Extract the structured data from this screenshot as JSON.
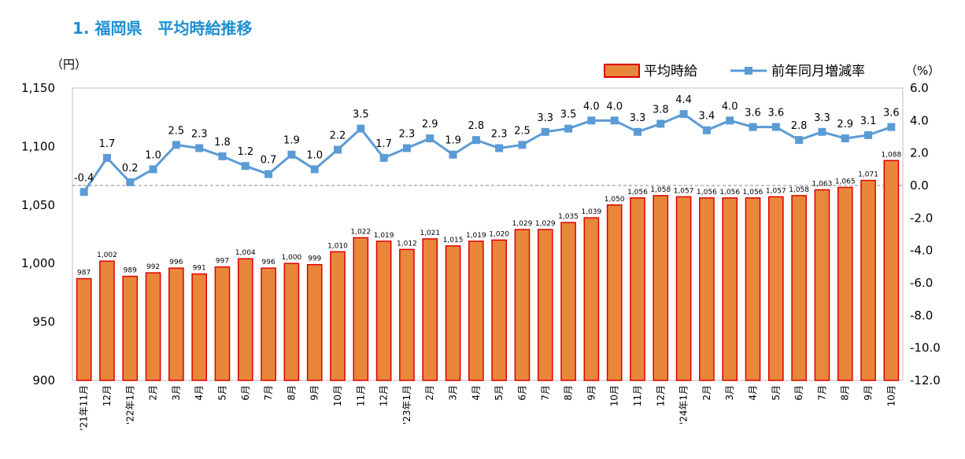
{
  "title": "1. 福岡県　平均時給推移",
  "chart_data": {
    "type": "bar",
    "title": "1. 福岡県　平均時給推移",
    "left_unit": "（円）",
    "right_unit": "（%）",
    "categories": [
      "'21年11月",
      "12月",
      "'22年1月",
      "2月",
      "3月",
      "4月",
      "5月",
      "6月",
      "7月",
      "8月",
      "9月",
      "10月",
      "11月",
      "12月",
      "'23年1月",
      "2月",
      "3月",
      "4月",
      "5月",
      "6月",
      "7月",
      "8月",
      "9月",
      "10月",
      "11月",
      "12月",
      "'24年1月",
      "2月",
      "3月",
      "4月",
      "5月",
      "6月",
      "7月",
      "8月",
      "9月",
      "10月"
    ],
    "y_left": {
      "min": 900,
      "max": 1150,
      "step": 50,
      "ticks": [
        "900",
        "950",
        "1,000",
        "1,050",
        "1,100",
        "1,150"
      ]
    },
    "y_right": {
      "min": -12,
      "max": 6,
      "step": 2,
      "ticks": [
        "-12.0",
        "-10.0",
        "-8.0",
        "-6.0",
        "-4.0",
        "-2.0",
        "0.0",
        "2.0",
        "4.0",
        "6.0"
      ]
    },
    "series": [
      {
        "name": "平均時給",
        "type": "bar",
        "axis": "left",
        "values": [
          987,
          1002,
          989,
          992,
          996,
          991,
          997,
          1004,
          996,
          1000,
          999,
          1010,
          1022,
          1019,
          1012,
          1021,
          1015,
          1019,
          1020,
          1029,
          1029,
          1035,
          1039,
          1050,
          1056,
          1058,
          1057,
          1056,
          1056,
          1056,
          1057,
          1058,
          1063,
          1065,
          1071,
          1088
        ],
        "labels": [
          "987",
          "1,002",
          "989",
          "992",
          "996",
          "991",
          "997",
          "1,004",
          "996",
          "1,000",
          "999",
          "1,010",
          "1,022",
          "1,019",
          "1,012",
          "1,021",
          "1,015",
          "1,019",
          "1,020",
          "1,029",
          "1,029",
          "1,035",
          "1,039",
          "1,050",
          "1,056",
          "1,058",
          "1,057",
          "1,056",
          "1,056",
          "1,056",
          "1,057",
          "1,058",
          "1,063",
          "1,065",
          "1,071",
          "1,088"
        ]
      },
      {
        "name": "前年同月増減率",
        "type": "line",
        "axis": "right",
        "values": [
          -0.4,
          1.7,
          0.2,
          1.0,
          2.5,
          2.3,
          1.8,
          1.2,
          0.7,
          1.9,
          1.0,
          2.2,
          3.5,
          1.7,
          2.3,
          2.9,
          1.9,
          2.8,
          2.3,
          2.5,
          3.3,
          3.5,
          4.0,
          4.0,
          3.3,
          3.8,
          4.4,
          3.4,
          4.0,
          3.6,
          3.6,
          2.8,
          3.3,
          2.9,
          3.1,
          3.6
        ],
        "labels": [
          "-0.4",
          "1.7",
          "0.2",
          "1.0",
          "2.5",
          "2.3",
          "1.8",
          "1.2",
          "0.7",
          "1.9",
          "1.0",
          "2.2",
          "3.5",
          "1.7",
          "2.3",
          "2.9",
          "1.9",
          "2.8",
          "2.3",
          "2.5",
          "3.3",
          "3.5",
          "4.0",
          "4.0",
          "3.3",
          "3.8",
          "4.4",
          "3.4",
          "4.0",
          "3.6",
          "3.6",
          "2.8",
          "3.3",
          "2.9",
          "3.1",
          "3.6"
        ]
      }
    ],
    "legend_position": "top-right",
    "colors": {
      "bar_fill": "#E8873A",
      "bar_stroke": "#E00000",
      "line": "#5B9BD5",
      "title": "#1F8FD0",
      "zero_line": "#888888"
    }
  }
}
